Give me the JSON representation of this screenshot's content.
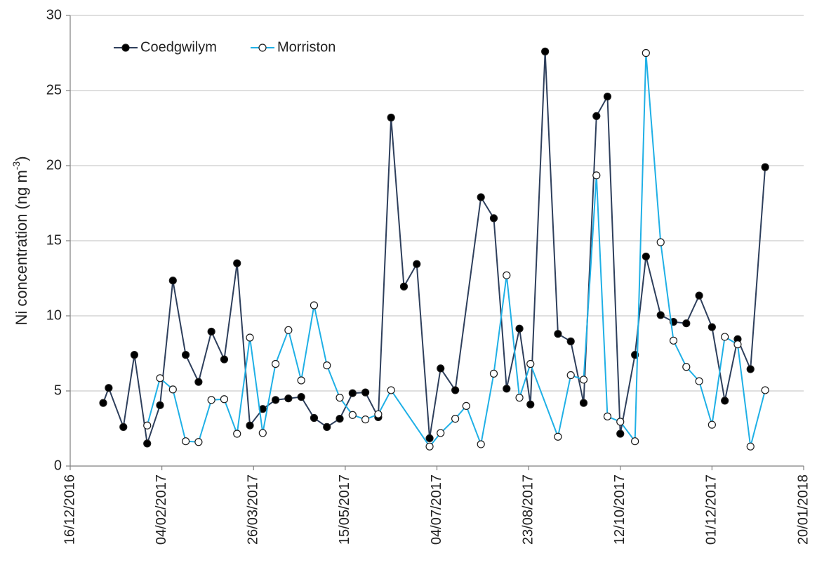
{
  "chart_data": {
    "type": "line",
    "ylabel": "Ni concentration (ng m",
    "ylabel_sup": "-3",
    "ylabel_end": ")",
    "xlim": [
      "2016-12-16",
      "2018-01-20"
    ],
    "xticks": [
      {
        "value": "2016-12-16",
        "label": "16/12/2016"
      },
      {
        "value": "2017-02-04",
        "label": "04/02/2017"
      },
      {
        "value": "2017-03-26",
        "label": "26/03/2017"
      },
      {
        "value": "2017-05-15",
        "label": "15/05/2017"
      },
      {
        "value": "2017-07-04",
        "label": "04/07/2017"
      },
      {
        "value": "2017-08-23",
        "label": "23/08/2017"
      },
      {
        "value": "2017-10-12",
        "label": "12/10/2017"
      },
      {
        "value": "2017-12-01",
        "label": "01/12/2017"
      },
      {
        "value": "2018-01-20",
        "label": "20/01/2018"
      }
    ],
    "ylim": [
      0,
      30
    ],
    "yticks": [
      0,
      5,
      10,
      15,
      20,
      25,
      30
    ],
    "grid": true,
    "legend": "upper left",
    "series": [
      {
        "name": "Coedgwilym",
        "color": "#2e3f5c",
        "marker_fill": "#000000",
        "x": [
          "2017-01-03",
          "2017-01-06",
          "2017-01-14",
          "2017-01-20",
          "2017-01-27",
          "2017-02-03",
          "2017-02-10",
          "2017-02-17",
          "2017-02-24",
          "2017-03-03",
          "2017-03-10",
          "2017-03-17",
          "2017-03-24",
          "2017-03-31",
          "2017-04-07",
          "2017-04-14",
          "2017-04-21",
          "2017-04-28",
          "2017-05-05",
          "2017-05-12",
          "2017-05-19",
          "2017-05-26",
          "2017-06-02",
          "2017-06-09",
          "2017-06-16",
          "2017-06-23",
          "2017-06-30",
          "2017-07-06",
          "2017-07-14",
          "2017-07-28",
          "2017-08-04",
          "2017-08-11",
          "2017-08-18",
          "2017-08-24",
          "2017-09-01",
          "2017-09-08",
          "2017-09-15",
          "2017-09-22",
          "2017-09-29",
          "2017-10-05",
          "2017-10-12",
          "2017-10-20",
          "2017-10-26",
          "2017-11-03",
          "2017-11-10",
          "2017-11-17",
          "2017-11-24",
          "2017-12-01",
          "2017-12-08",
          "2017-12-15",
          "2017-12-22",
          "2017-12-30"
        ],
        "values": [
          4.2,
          5.2,
          2.6,
          7.4,
          1.5,
          4.05,
          12.35,
          7.4,
          5.6,
          8.95,
          7.1,
          13.5,
          2.7,
          3.8,
          4.4,
          4.5,
          4.6,
          3.2,
          2.6,
          3.15,
          4.85,
          4.9,
          3.25,
          23.2,
          11.95,
          13.45,
          1.85,
          6.5,
          5.05,
          17.9,
          16.5,
          5.15,
          9.15,
          4.1,
          27.6,
          8.8,
          8.3,
          4.2,
          23.3,
          24.6,
          2.15,
          7.4,
          13.95,
          10.05,
          9.6,
          9.5,
          11.35,
          9.25,
          4.35,
          8.45,
          6.45,
          19.9
        ]
      },
      {
        "name": "Morriston",
        "color": "#1fb0e6",
        "marker_fill": "#ffffff",
        "x": [
          "2017-01-27",
          "2017-02-03",
          "2017-02-10",
          "2017-02-17",
          "2017-02-24",
          "2017-03-03",
          "2017-03-10",
          "2017-03-17",
          "2017-03-24",
          "2017-03-31",
          "2017-04-07",
          "2017-04-14",
          "2017-04-21",
          "2017-04-28",
          "2017-05-05",
          "2017-05-12",
          "2017-05-19",
          "2017-05-26",
          "2017-06-02",
          "2017-06-09",
          "2017-06-30",
          "2017-07-06",
          "2017-07-14",
          "2017-07-20",
          "2017-07-28",
          "2017-08-04",
          "2017-08-11",
          "2017-08-18",
          "2017-08-24",
          "2017-09-08",
          "2017-09-15",
          "2017-09-22",
          "2017-09-29",
          "2017-10-05",
          "2017-10-12",
          "2017-10-20",
          "2017-10-26",
          "2017-11-03",
          "2017-11-10",
          "2017-11-17",
          "2017-11-24",
          "2017-12-01",
          "2017-12-08",
          "2017-12-15",
          "2017-12-22",
          "2017-12-30"
        ],
        "values": [
          2.7,
          5.85,
          5.1,
          1.65,
          1.6,
          4.4,
          4.45,
          2.15,
          8.55,
          2.2,
          6.8,
          9.05,
          5.7,
          10.7,
          6.7,
          4.55,
          3.4,
          3.1,
          3.45,
          5.05,
          1.3,
          2.2,
          3.15,
          4.0,
          1.45,
          6.15,
          12.7,
          4.55,
          6.8,
          1.95,
          6.05,
          5.75,
          19.35,
          3.3,
          2.95,
          1.65,
          27.5,
          14.9,
          8.35,
          6.6,
          5.65,
          2.75,
          8.6,
          8.1,
          1.3,
          5.05
        ]
      }
    ]
  }
}
